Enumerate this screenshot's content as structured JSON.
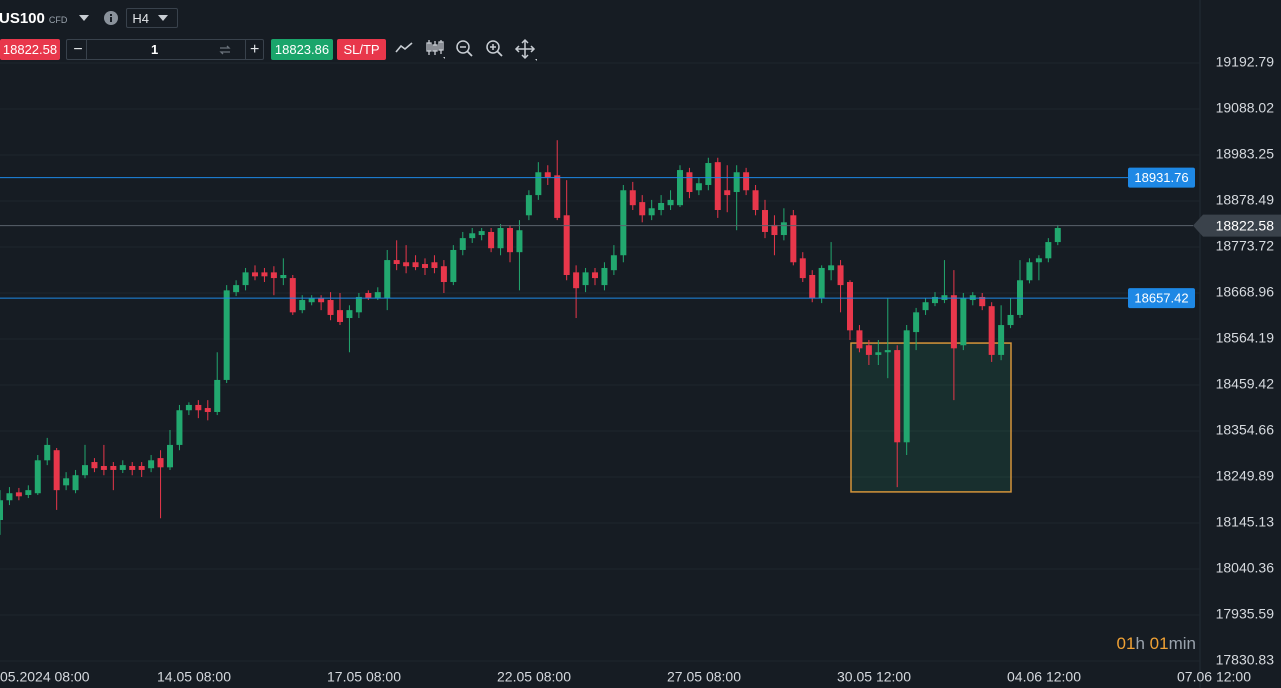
{
  "toolbar": {
    "symbol": "US100",
    "symbol_type": "CFD",
    "timeframe": "H4",
    "sell_price": "18822.58",
    "quantity": "1",
    "buy_price": "18823.86",
    "sltp": "SL/TP"
  },
  "countdown": {
    "hours": "01",
    "hours_unit": "h",
    "minutes": "01",
    "minutes_unit": "min"
  },
  "chart_data": {
    "type": "candlestick",
    "up_color": "#22a86f",
    "down_color": "#e8374b",
    "ylim": [
      17769.4,
      19336.3
    ],
    "yticks": [
      19192.79,
      19088.02,
      18983.25,
      18878.49,
      18773.72,
      18668.96,
      18564.19,
      18459.42,
      18354.66,
      18249.89,
      18145.13,
      18040.36,
      17935.59,
      17830.83
    ],
    "grid": true,
    "xticks": [
      "05.2024 08:00",
      "14.05 08:00",
      "17.05 08:00",
      "22.05 08:00",
      "27.05 08:00",
      "30.05 12:00",
      "04.06 12:00",
      "07.06 12:00"
    ],
    "hlines": [
      {
        "value": 18931.76,
        "color": "#1e88e5"
      },
      {
        "value": 18657.42,
        "color": "#1e88e5"
      }
    ],
    "current_price": 18822.58,
    "zone": {
      "top": 18555,
      "bottom": 18216,
      "color": "#d4943a"
    },
    "open": [
      18152,
      18197,
      18215,
      18209,
      18213,
      18288,
      18311,
      18231,
      18220,
      18254,
      18284,
      18275,
      18275,
      18266,
      18275,
      18275,
      18270,
      18293,
      18272,
      18323,
      18402,
      18414,
      18407,
      18398,
      18471,
      18671,
      18687,
      18716,
      18716,
      18716,
      18703,
      18703,
      18630,
      18648,
      18657,
      18653,
      18630,
      18612,
      18625,
      18669,
      18657,
      18657,
      18744,
      18739,
      18739,
      18735,
      18739,
      18730,
      18694,
      18767,
      18794,
      18801,
      18808,
      18771,
      18817,
      18762,
      18846,
      18892,
      18944,
      18937,
      18846,
      18716,
      18687,
      18716,
      18687,
      18721,
      18755,
      18903,
      18876,
      18846,
      18858,
      18869,
      18869,
      18944,
      18903,
      18915,
      18967,
      18903,
      18899,
      18944,
      18903,
      18858,
      18824,
      18801,
      18846,
      18748,
      18710,
      18657,
      18721,
      18732,
      18694,
      18584,
      18550,
      18528,
      18534,
      18539,
      18329,
      18580,
      18630,
      18646,
      18653,
      18664,
      18550,
      18653,
      18660,
      18639,
      18528,
      18596,
      18619,
      18698,
      18739,
      18748,
      18785
    ],
    "high": [
      18220,
      18227,
      18225,
      18231,
      18300,
      18339,
      18316,
      18261,
      18266,
      18323,
      18293,
      18323,
      18284,
      18288,
      18284,
      18284,
      18300,
      18311,
      18357,
      18414,
      18420,
      18425,
      18425,
      18534,
      18687,
      18698,
      18726,
      18732,
      18726,
      18730,
      18748,
      18710,
      18664,
      18664,
      18664,
      18671,
      18669,
      18641,
      18669,
      18675,
      18682,
      18767,
      18789,
      18778,
      18755,
      18748,
      18755,
      18744,
      18778,
      18808,
      18817,
      18817,
      18817,
      18826,
      18824,
      18835,
      18903,
      18967,
      18960,
      19017,
      18926,
      18732,
      18726,
      18726,
      18739,
      18778,
      18915,
      18922,
      18892,
      18881,
      18892,
      18903,
      18960,
      18954,
      18931,
      18977,
      18977,
      18960,
      18960,
      18954,
      18915,
      18881,
      18846,
      18862,
      18858,
      18762,
      18721,
      18732,
      18785,
      18744,
      18698,
      18596,
      18562,
      18562,
      18657,
      18550,
      18596,
      18635,
      18657,
      18671,
      18744,
      18721,
      18669,
      18671,
      18669,
      18648,
      18641,
      18657,
      18744,
      18748,
      18755,
      18794,
      18824
    ],
    "low": [
      18118,
      18186,
      18197,
      18202,
      18209,
      18277,
      18175,
      18220,
      18213,
      18247,
      18261,
      18254,
      18220,
      18259,
      18254,
      18250,
      18261,
      18156,
      18266,
      18311,
      18391,
      18384,
      18379,
      18391,
      18464,
      18662,
      18675,
      18698,
      18694,
      18664,
      18687,
      18619,
      18623,
      18641,
      18630,
      18607,
      18596,
      18534,
      18612,
      18653,
      18653,
      18630,
      18721,
      18714,
      18721,
      18710,
      18714,
      18669,
      18687,
      18755,
      18783,
      18789,
      18762,
      18755,
      18739,
      18675,
      18835,
      18881,
      18915,
      18835,
      18698,
      18612,
      18671,
      18687,
      18675,
      18710,
      18739,
      18858,
      18830,
      18835,
      18846,
      18858,
      18865,
      18885,
      18892,
      18903,
      18840,
      18853,
      18812,
      18892,
      18846,
      18794,
      18755,
      18789,
      18732,
      18694,
      18648,
      18646,
      18698,
      18625,
      18562,
      18534,
      18505,
      18505,
      18475,
      18227,
      18300,
      18539,
      18619,
      18639,
      18646,
      18425,
      18539,
      18641,
      18630,
      18512,
      18516,
      18589,
      18612,
      18691,
      18698,
      18739,
      18778
    ],
    "close": [
      18197,
      18213,
      18206,
      18220,
      18288,
      18323,
      18220,
      18247,
      18254,
      18277,
      18270,
      18266,
      18266,
      18277,
      18266,
      18266,
      18288,
      18272,
      18323,
      18402,
      18414,
      18402,
      18398,
      18471,
      18675,
      18687,
      18716,
      18707,
      18707,
      18703,
      18710,
      18625,
      18653,
      18657,
      18648,
      18619,
      18603,
      18630,
      18660,
      18657,
      18671,
      18744,
      18735,
      18730,
      18728,
      18726,
      18726,
      18694,
      18767,
      18794,
      18805,
      18810,
      18771,
      18817,
      18762,
      18812,
      18892,
      18944,
      18933,
      18840,
      18710,
      18680,
      18716,
      18703,
      18726,
      18755,
      18903,
      18869,
      18846,
      18862,
      18874,
      18881,
      18949,
      18899,
      18919,
      18965,
      18858,
      18892,
      18944,
      18903,
      18858,
      18808,
      18801,
      18830,
      18739,
      18703,
      18657,
      18726,
      18732,
      18687,
      18584,
      18543,
      18528,
      18534,
      18539,
      18329,
      18584,
      18625,
      18648,
      18660,
      18664,
      18543,
      18657,
      18664,
      18639,
      18528,
      18596,
      18619,
      18698,
      18739,
      18748,
      18785,
      18817
    ]
  }
}
